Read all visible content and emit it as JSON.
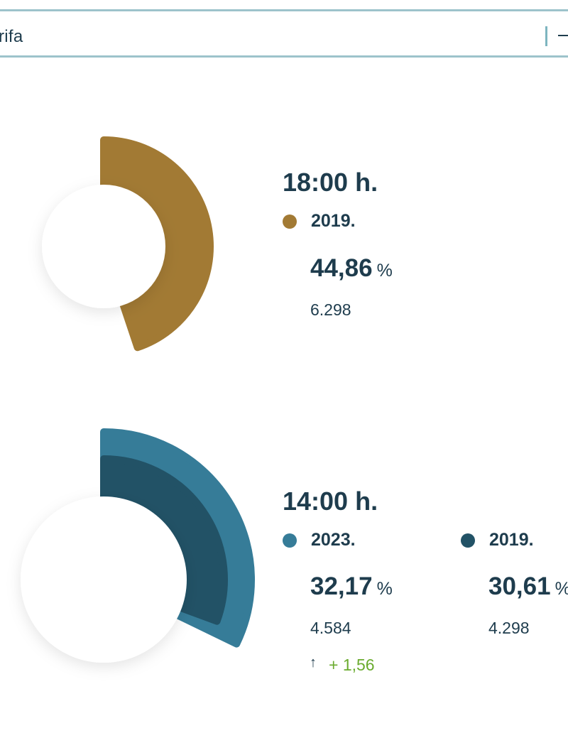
{
  "search": {
    "text": "rifa"
  },
  "chart_data": [
    {
      "type": "pie",
      "title": "18:00 h.",
      "series": [
        {
          "name": "2019.",
          "percent": 44.86,
          "percent_label": "44,86",
          "count_label": "6.298",
          "color": "#a27a34"
        }
      ],
      "unit": "%"
    },
    {
      "type": "pie",
      "title": "14:00 h.",
      "series": [
        {
          "name": "2023.",
          "percent": 32.17,
          "percent_label": "32,17",
          "count_label": "4.584",
          "color": "#367c98",
          "change_label": "+ 1,56"
        },
        {
          "name": "2019.",
          "percent": 30.61,
          "percent_label": "30,61",
          "count_label": "4.298",
          "color": "#225266"
        }
      ],
      "unit": "%"
    }
  ],
  "colors": {
    "text": "#1e3c4d",
    "positive": "#6aab2e",
    "bar_border": "#9dc3cb"
  }
}
